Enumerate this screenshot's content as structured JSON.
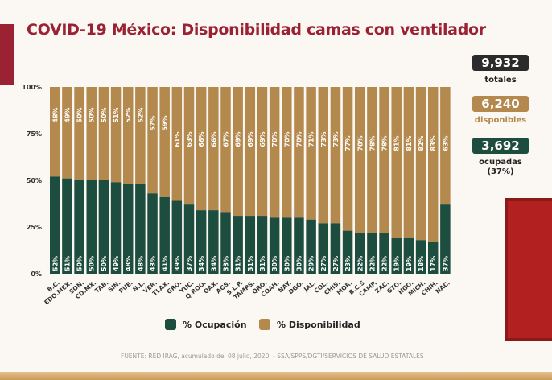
{
  "title": "COVID-19 México: Disponibilidad camas con ventilador",
  "stats": {
    "total": {
      "value": "9,932",
      "label": "totales"
    },
    "available": {
      "value": "6,240",
      "label": "disponibles"
    },
    "occupied": {
      "value": "3,692",
      "label": "ocupadas",
      "pct": "(37%)"
    }
  },
  "source": "FUENTE: RED IRAG, acumulado del 08 julio, 2020. - SSA/SPPS/DGTI/SERVICIOS DE SALUD ESTATALES",
  "colors": {
    "occupation": "#1d4d3e",
    "availability": "#b4894d",
    "title": "#9b2233"
  },
  "chart_data": {
    "type": "bar",
    "stacked": true,
    "ylim": [
      0,
      100
    ],
    "yticks": [
      "0%",
      "25%",
      "50%",
      "75%",
      "100%"
    ],
    "categories": [
      "B.C.",
      "EDO.MEX.",
      "SON.",
      "CD.MX.",
      "TAB.",
      "SIN.",
      "PUE.",
      "N.L.",
      "VER.",
      "TLAX.",
      "GRO.",
      "YUC.",
      "Q.ROO.",
      "OAX.",
      "AGS.",
      "S.L.P.",
      "TAMPS.",
      "QRO.",
      "COAH.",
      "NAY.",
      "DGO.",
      "JAL.",
      "COL.",
      "CHIS.",
      "MOR.",
      "B.C.S",
      "CAMP.",
      "ZAC.",
      "GTO.",
      "HGO.",
      "MICH.",
      "CHIH.",
      "NAC."
    ],
    "series": [
      {
        "name": "% Ocupación",
        "values": [
          52,
          51,
          50,
          50,
          50,
          49,
          48,
          48,
          43,
          41,
          39,
          37,
          34,
          34,
          33,
          31,
          31,
          31,
          30,
          30,
          30,
          29,
          27,
          27,
          23,
          22,
          22,
          22,
          19,
          19,
          18,
          17,
          37
        ]
      },
      {
        "name": "% Disponibilidad",
        "values": [
          48,
          49,
          50,
          50,
          50,
          51,
          52,
          52,
          57,
          59,
          61,
          63,
          66,
          66,
          67,
          69,
          69,
          69,
          70,
          70,
          70,
          71,
          73,
          73,
          77,
          78,
          78,
          78,
          81,
          81,
          82,
          83,
          63
        ]
      }
    ],
    "legend": "bottom"
  }
}
